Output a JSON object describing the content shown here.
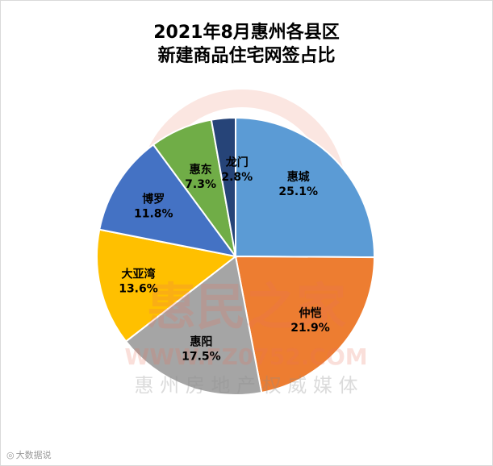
{
  "title_lines": [
    "2021年8月惠州各县区",
    "新建商品住宅网签占比"
  ],
  "chart_data": {
    "type": "pie",
    "title": "2021年8月惠州各县区新建商品住宅网签占比",
    "slices": [
      {
        "label": "惠城",
        "value": 25.1,
        "display": "25.1%",
        "color": "#5b9bd5"
      },
      {
        "label": "仲恺",
        "value": 21.9,
        "display": "21.9%",
        "color": "#ed7d31"
      },
      {
        "label": "惠阳",
        "value": 17.5,
        "display": "17.5%",
        "color": "#a5a5a5"
      },
      {
        "label": "大亚湾",
        "value": 13.6,
        "display": "13.6%",
        "color": "#ffc000"
      },
      {
        "label": "博罗",
        "value": 11.8,
        "display": "11.8%",
        "color": "#4472c4"
      },
      {
        "label": "惠东",
        "value": 7.3,
        "display": "7.3%",
        "color": "#70ad47"
      },
      {
        "label": "龙门",
        "value": 2.8,
        "display": "2.8%",
        "color": "#264478"
      }
    ],
    "start_angle_deg": 0,
    "direction": "clockwise",
    "legend": "none"
  },
  "watermark": {
    "brand": "惠民之家",
    "url": "WWW.FZ0752.COM",
    "tagline": "惠 州 房 地 产 权 威 媒 体",
    "source_mark": "大数据说",
    "color": "#e9725a"
  }
}
